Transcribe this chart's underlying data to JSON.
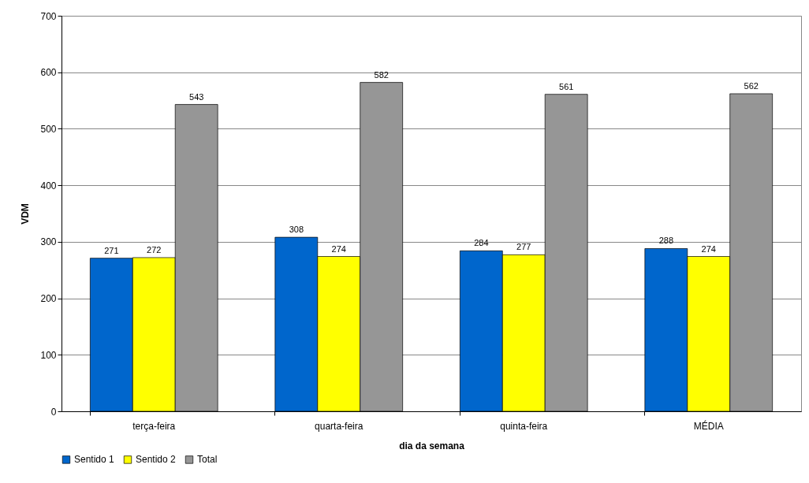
{
  "chart_data": {
    "type": "bar",
    "xlabel": "dia da semana",
    "ylabel": "VDM",
    "categories": [
      "terça-feira",
      "quarta-feira",
      "quinta-feira",
      "MÉDIA"
    ],
    "series": [
      {
        "name": "Sentido 1",
        "color": "#0066cc",
        "values": [
          271,
          308,
          284,
          288
        ]
      },
      {
        "name": "Sentido 2",
        "color": "#ffff00",
        "values": [
          272,
          274,
          277,
          274
        ]
      },
      {
        "name": "Total",
        "color": "#969696",
        "values": [
          543,
          582,
          561,
          562
        ]
      }
    ],
    "ylim": [
      0,
      700
    ],
    "yticks": [
      0,
      100,
      200,
      300,
      400,
      500,
      600,
      700
    ],
    "grid": "y",
    "legend": "bottom",
    "data_labels": true
  }
}
